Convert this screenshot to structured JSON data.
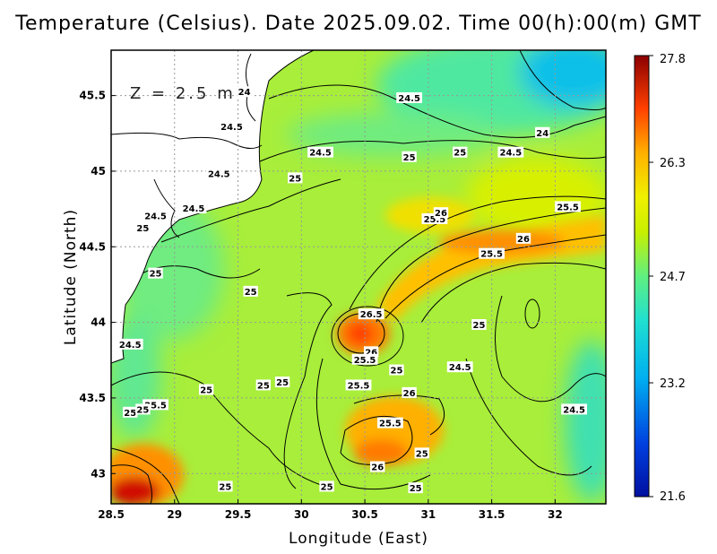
{
  "chart_data": {
    "type": "heatmap",
    "title": "Temperature (Celsius). Date 2025.09.02. Time 00(h):00(m) GMT",
    "annotation": "Z = 2.5 m",
    "xlabel": "Longitude (East)",
    "ylabel": "Latitude (North)",
    "xlim": [
      28.5,
      32.4
    ],
    "ylim": [
      42.8,
      45.8
    ],
    "xticks": [
      "28.5",
      "29",
      "29.5",
      "30",
      "30.5",
      "31",
      "31.5",
      "32"
    ],
    "yticks": [
      "43",
      "43.5",
      "44",
      "44.5",
      "45",
      "45.5"
    ],
    "grid": true,
    "colorbar": {
      "min": 21.6,
      "max": 27.8,
      "ticks": [
        "27.8",
        "26.3",
        "24.7",
        "23.2",
        "21.6"
      ],
      "position": "right"
    },
    "colors": {
      "max": "#8b0000",
      "high": "#ff4000",
      "warm": "#ffb000",
      "mid": "#c8f000",
      "cool": "#40e0b0",
      "cold": "#00b0f0",
      "min": "#0010a0"
    },
    "contour_labels": [
      {
        "lon": 29.55,
        "lat": 45.52,
        "text": "24"
      },
      {
        "lon": 30.85,
        "lat": 45.48,
        "text": "24.5"
      },
      {
        "lon": 31.9,
        "lat": 45.25,
        "text": "24"
      },
      {
        "lon": 29.45,
        "lat": 45.29,
        "text": "24.5"
      },
      {
        "lon": 30.15,
        "lat": 45.12,
        "text": "24.5"
      },
      {
        "lon": 30.85,
        "lat": 45.09,
        "text": "25"
      },
      {
        "lon": 31.25,
        "lat": 45.12,
        "text": "25"
      },
      {
        "lon": 31.65,
        "lat": 45.12,
        "text": "24.5"
      },
      {
        "lon": 29.35,
        "lat": 44.98,
        "text": "24.5"
      },
      {
        "lon": 29.95,
        "lat": 44.95,
        "text": "25"
      },
      {
        "lon": 29.15,
        "lat": 44.75,
        "text": "24.5"
      },
      {
        "lon": 28.85,
        "lat": 44.7,
        "text": "24.5"
      },
      {
        "lon": 28.75,
        "lat": 44.62,
        "text": "25"
      },
      {
        "lon": 31.05,
        "lat": 44.68,
        "text": "25.5"
      },
      {
        "lon": 31.1,
        "lat": 44.72,
        "text": "26"
      },
      {
        "lon": 32.1,
        "lat": 44.76,
        "text": "25.5"
      },
      {
        "lon": 31.75,
        "lat": 44.55,
        "text": "26"
      },
      {
        "lon": 31.5,
        "lat": 44.45,
        "text": "25.5"
      },
      {
        "lon": 28.85,
        "lat": 44.32,
        "text": "25"
      },
      {
        "lon": 29.6,
        "lat": 44.2,
        "text": "25"
      },
      {
        "lon": 30.55,
        "lat": 44.05,
        "text": "26.5"
      },
      {
        "lon": 31.4,
        "lat": 43.98,
        "text": "25"
      },
      {
        "lon": 28.65,
        "lat": 43.85,
        "text": "24.5"
      },
      {
        "lon": 30.55,
        "lat": 43.8,
        "text": "26"
      },
      {
        "lon": 30.5,
        "lat": 43.75,
        "text": "25.5"
      },
      {
        "lon": 30.75,
        "lat": 43.68,
        "text": "25"
      },
      {
        "lon": 31.25,
        "lat": 43.7,
        "text": "24.5"
      },
      {
        "lon": 29.25,
        "lat": 43.55,
        "text": "25"
      },
      {
        "lon": 29.7,
        "lat": 43.58,
        "text": "25"
      },
      {
        "lon": 29.85,
        "lat": 43.6,
        "text": "25"
      },
      {
        "lon": 30.45,
        "lat": 43.58,
        "text": "25.5"
      },
      {
        "lon": 30.85,
        "lat": 43.53,
        "text": "26"
      },
      {
        "lon": 28.85,
        "lat": 43.45,
        "text": "25.5"
      },
      {
        "lon": 28.65,
        "lat": 43.4,
        "text": "25"
      },
      {
        "lon": 28.75,
        "lat": 43.42,
        "text": "25"
      },
      {
        "lon": 32.15,
        "lat": 43.42,
        "text": "24.5"
      },
      {
        "lon": 30.7,
        "lat": 43.33,
        "text": "25.5"
      },
      {
        "lon": 30.95,
        "lat": 43.13,
        "text": "25"
      },
      {
        "lon": 30.6,
        "lat": 43.04,
        "text": "26"
      },
      {
        "lon": 29.4,
        "lat": 42.91,
        "text": "25"
      },
      {
        "lon": 30.2,
        "lat": 42.91,
        "text": "25"
      },
      {
        "lon": 30.9,
        "lat": 42.9,
        "text": "25"
      }
    ]
  }
}
